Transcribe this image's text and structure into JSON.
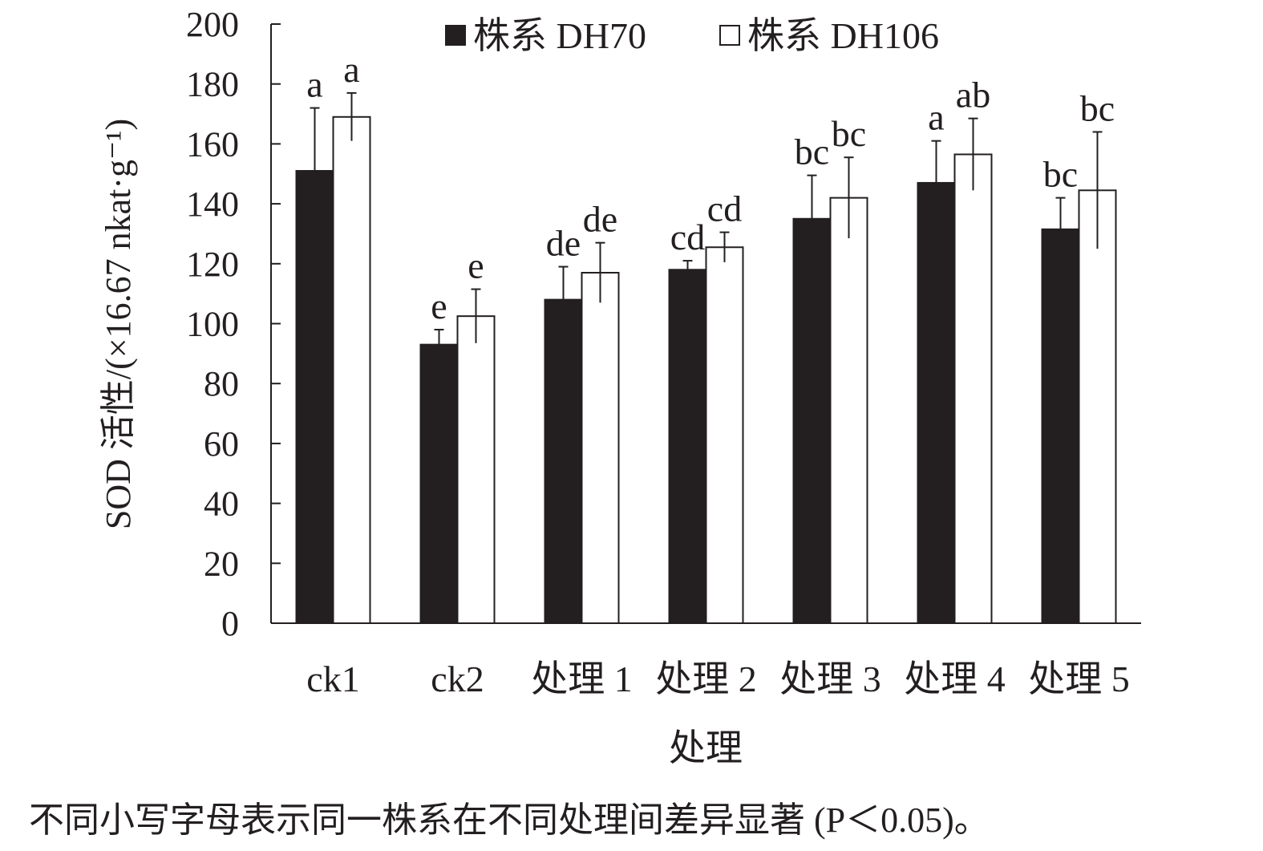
{
  "chart_data": {
    "type": "bar",
    "title": "",
    "xlabel": "处理",
    "ylabel": "SOD 活性/(×16.67 nkat·g⁻¹)",
    "ylim": [
      0,
      200
    ],
    "yticks": [
      0,
      20,
      40,
      60,
      80,
      100,
      120,
      140,
      160,
      180,
      200
    ],
    "categories": [
      "ck1",
      "ck2",
      "处理 1",
      "处理 2",
      "处理 3",
      "处理 4",
      "处理 5"
    ],
    "series": [
      {
        "name": "株系 DH70",
        "color": "#231f20",
        "values": [
          151,
          93,
          108,
          118,
          135,
          147,
          131.5
        ],
        "errors": [
          21,
          5,
          11,
          3,
          14.5,
          14,
          10.5
        ],
        "letters": [
          "a",
          "e",
          "de",
          "cd",
          "bc",
          "a",
          "bc"
        ]
      },
      {
        "name": "株系 DH106",
        "color": "#ffffff",
        "values": [
          169,
          102.5,
          117,
          125.5,
          142,
          156.5,
          144.5
        ],
        "errors": [
          8,
          9,
          10,
          5,
          13.5,
          12,
          19.5
        ],
        "letters": [
          "a",
          "e",
          "de",
          "cd",
          "bc",
          "ab",
          "bc"
        ]
      }
    ],
    "legend": "top",
    "grid": false,
    "caption": "不同小写字母表示同一株系在不同处理间差异显著 (P＜0.05)。"
  }
}
